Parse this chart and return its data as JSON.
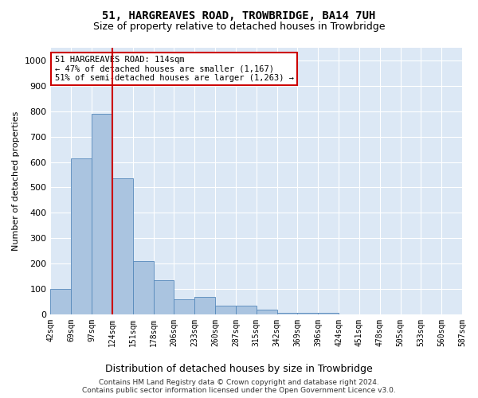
{
  "title": "51, HARGREAVES ROAD, TROWBRIDGE, BA14 7UH",
  "subtitle": "Size of property relative to detached houses in Trowbridge",
  "xlabel": "Distribution of detached houses by size in Trowbridge",
  "ylabel": "Number of detached properties",
  "footer_line1": "Contains HM Land Registry data © Crown copyright and database right 2024.",
  "footer_line2": "Contains public sector information licensed under the Open Government Licence v3.0.",
  "bar_values": [
    100,
    615,
    790,
    535,
    210,
    135,
    60,
    70,
    35,
    35,
    20,
    5,
    5,
    5,
    0,
    0,
    0,
    0,
    0,
    0
  ],
  "bin_labels": [
    "42sqm",
    "69sqm",
    "97sqm",
    "124sqm",
    "151sqm",
    "178sqm",
    "206sqm",
    "233sqm",
    "260sqm",
    "287sqm",
    "315sqm",
    "342sqm",
    "369sqm",
    "396sqm",
    "424sqm",
    "451sqm",
    "478sqm",
    "505sqm",
    "533sqm",
    "560sqm",
    "587sqm"
  ],
  "bar_color": "#aac4e0",
  "bar_edge_color": "#5588bb",
  "bg_color": "#dce8f5",
  "grid_color": "#ffffff",
  "vline_color": "#cc0000",
  "annotation_line1": "51 HARGREAVES ROAD: 114sqm",
  "annotation_line2": "← 47% of detached houses are smaller (1,167)",
  "annotation_line3": "51% of semi-detached houses are larger (1,263) →",
  "annotation_box_color": "#cc0000",
  "ylim": [
    0,
    1050
  ],
  "yticks": [
    0,
    100,
    200,
    300,
    400,
    500,
    600,
    700,
    800,
    900,
    1000
  ]
}
